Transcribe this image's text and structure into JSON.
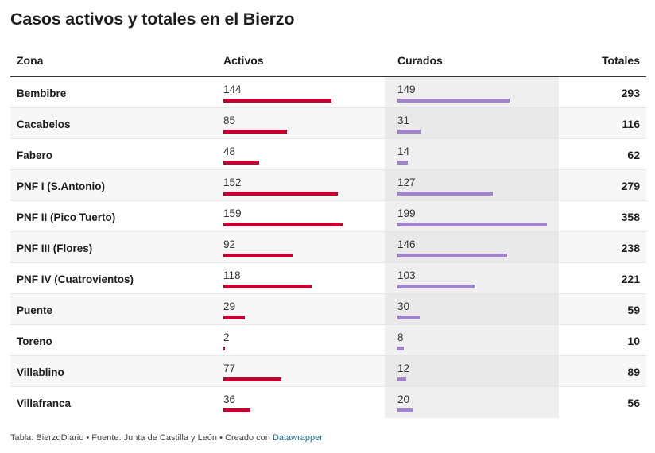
{
  "title": "Casos activos y totales en el Bierzo",
  "columns": {
    "zona": "Zona",
    "activos": "Activos",
    "curados": "Curados",
    "totales": "Totales"
  },
  "colors": {
    "activos_bar": "#c3002f",
    "curados_bar": "#a084c8",
    "curados_band": "#efefef"
  },
  "footer": {
    "text": "Tabla: BierzoDiario • Fuente: Junta de Castilla y León • Creado con ",
    "link": "Datawrapper"
  },
  "chart_data": {
    "type": "table",
    "title": "Casos activos y totales en el Bierzo",
    "columns": [
      "Zona",
      "Activos",
      "Curados",
      "Totales"
    ],
    "bar_max": 199,
    "rows": [
      {
        "zona": "Bembibre",
        "activos": 144,
        "curados": 149,
        "totales": 293
      },
      {
        "zona": "Cacabelos",
        "activos": 85,
        "curados": 31,
        "totales": 116
      },
      {
        "zona": "Fabero",
        "activos": 48,
        "curados": 14,
        "totales": 62
      },
      {
        "zona": "PNF I (S.Antonio)",
        "activos": 152,
        "curados": 127,
        "totales": 279
      },
      {
        "zona": "PNF II (Pico Tuerto)",
        "activos": 159,
        "curados": 199,
        "totales": 358
      },
      {
        "zona": "PNF III (Flores)",
        "activos": 92,
        "curados": 146,
        "totales": 238
      },
      {
        "zona": "PNF IV (Cuatrovientos)",
        "activos": 118,
        "curados": 103,
        "totales": 221
      },
      {
        "zona": "Puente",
        "activos": 29,
        "curados": 30,
        "totales": 59
      },
      {
        "zona": "Toreno",
        "activos": 2,
        "curados": 8,
        "totales": 10
      },
      {
        "zona": "Villablino",
        "activos": 77,
        "curados": 12,
        "totales": 89
      },
      {
        "zona": "Villafranca",
        "activos": 36,
        "curados": 20,
        "totales": 56
      }
    ]
  }
}
